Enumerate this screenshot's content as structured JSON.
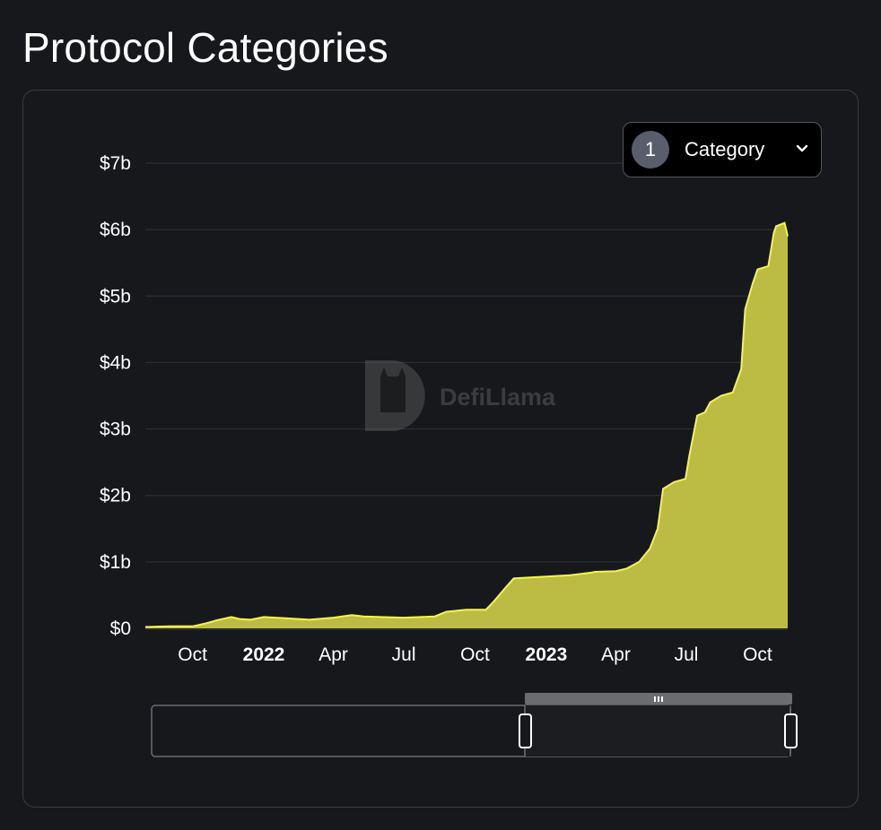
{
  "page": {
    "title": "Protocol Categories"
  },
  "selector": {
    "count": "1",
    "label": "Category"
  },
  "watermark": {
    "text": "DefiLlama"
  },
  "colors": {
    "background": "#17181c",
    "series_fill": "#bcbc44",
    "series_line": "#f5f54a",
    "grid": "#2c2e34"
  },
  "chart_data": {
    "type": "area",
    "title": "",
    "xlabel": "",
    "ylabel": "",
    "ylim": [
      0,
      7
    ],
    "y_unit": "b",
    "y_ticks": [
      "$0",
      "$1b",
      "$2b",
      "$3b",
      "$4b",
      "$5b",
      "$6b",
      "$7b"
    ],
    "y_tick_values": [
      0,
      1,
      2,
      3,
      4,
      5,
      6,
      7
    ],
    "x_range": [
      "2021-08-01",
      "2023-11-09"
    ],
    "x_ticks": [
      {
        "label": "Oct",
        "date": "2021-10-01",
        "bold": false
      },
      {
        "label": "2022",
        "date": "2022-01-01",
        "bold": true
      },
      {
        "label": "Apr",
        "date": "2022-04-01",
        "bold": false
      },
      {
        "label": "Jul",
        "date": "2022-07-01",
        "bold": false
      },
      {
        "label": "Oct",
        "date": "2022-10-01",
        "bold": false
      },
      {
        "label": "2023",
        "date": "2023-01-01",
        "bold": true
      },
      {
        "label": "Apr",
        "date": "2023-04-01",
        "bold": false
      },
      {
        "label": "Jul",
        "date": "2023-07-01",
        "bold": false
      },
      {
        "label": "Oct",
        "date": "2023-10-01",
        "bold": false
      }
    ],
    "grid": true,
    "legend": "none",
    "series": [
      {
        "x": [
          "2021-08-01",
          "2021-09-01",
          "2021-10-01",
          "2021-10-20",
          "2021-11-01",
          "2021-11-20",
          "2021-12-01",
          "2021-12-15",
          "2022-01-01",
          "2022-02-01",
          "2022-03-01",
          "2022-04-01",
          "2022-04-25",
          "2022-05-10",
          "2022-06-01",
          "2022-07-01",
          "2022-08-10",
          "2022-08-25",
          "2022-09-20",
          "2022-10-15",
          "2022-10-25",
          "2022-11-10",
          "2022-11-20",
          "2022-12-01",
          "2023-01-01",
          "2023-02-01",
          "2023-03-01",
          "2023-03-05",
          "2023-04-01",
          "2023-04-15",
          "2023-05-01",
          "2023-05-15",
          "2023-05-25",
          "2023-06-01",
          "2023-06-15",
          "2023-06-30",
          "2023-07-05",
          "2023-07-15",
          "2023-07-25",
          "2023-08-01",
          "2023-08-15",
          "2023-08-30",
          "2023-09-10",
          "2023-09-15",
          "2023-09-25",
          "2023-10-01",
          "2023-10-15",
          "2023-10-22",
          "2023-10-25",
          "2023-11-05",
          "2023-11-09"
        ],
        "y": [
          0.02,
          0.03,
          0.03,
          0.08,
          0.12,
          0.17,
          0.14,
          0.13,
          0.17,
          0.15,
          0.13,
          0.16,
          0.2,
          0.18,
          0.17,
          0.16,
          0.18,
          0.25,
          0.28,
          0.28,
          0.4,
          0.62,
          0.75,
          0.76,
          0.78,
          0.8,
          0.84,
          0.85,
          0.86,
          0.9,
          1.0,
          1.2,
          1.5,
          2.1,
          2.2,
          2.25,
          2.6,
          3.2,
          3.25,
          3.4,
          3.5,
          3.55,
          3.9,
          4.8,
          5.2,
          5.4,
          5.45,
          5.95,
          6.05,
          6.1,
          5.9
        ]
      }
    ]
  }
}
